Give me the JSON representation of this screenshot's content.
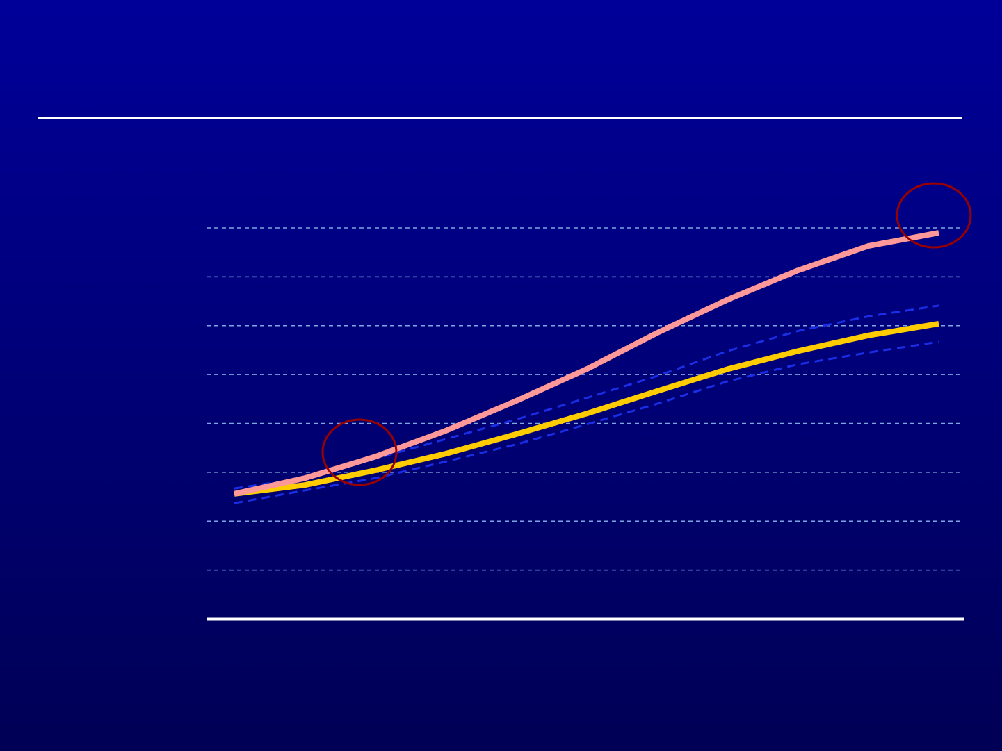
{
  "chart_data": {
    "type": "line",
    "x": [
      0,
      1,
      2,
      3,
      4,
      5,
      6,
      7,
      8,
      9,
      10
    ],
    "xlim": [
      0,
      10
    ],
    "ylim": [
      0,
      8
    ],
    "yticks": [
      1,
      2,
      3,
      4,
      5,
      6,
      7,
      8
    ],
    "grid": true,
    "series": [
      {
        "color": "#000000",
        "style": "dashed",
        "values": [
          2.67,
          2.88,
          3.28,
          3.68,
          4.08,
          4.52,
          4.97,
          5.48,
          5.89,
          6.19,
          6.41
        ]
      },
      {
        "color": "#000000",
        "style": "dashed",
        "values": [
          2.37,
          2.63,
          2.88,
          3.22,
          3.57,
          3.98,
          4.4,
          4.86,
          5.21,
          5.45,
          5.67
        ]
      },
      {
        "color": "#ffcc00",
        "style": "solid",
        "values": [
          2.56,
          2.74,
          3.04,
          3.38,
          3.78,
          4.2,
          4.66,
          5.11,
          5.48,
          5.8,
          6.04
        ]
      },
      {
        "color": "#ff9999",
        "style": "solid",
        "values": [
          2.56,
          2.88,
          3.32,
          3.85,
          4.46,
          5.11,
          5.85,
          6.53,
          7.13,
          7.63,
          7.9
        ]
      }
    ]
  }
}
